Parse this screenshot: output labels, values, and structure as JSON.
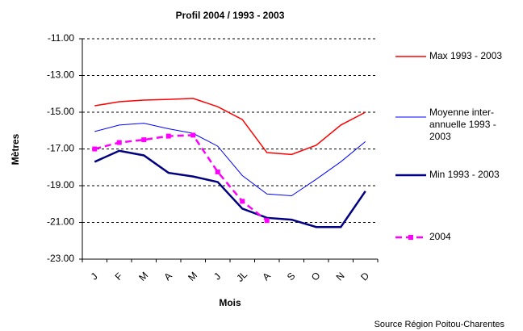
{
  "chart_data": {
    "type": "line",
    "title": "Profil 2004 / 1993 - 2003",
    "y_label": "Mètres",
    "x_label": "Mois",
    "source": "Source Région Poitou-Charentes",
    "categories": [
      "J",
      "F",
      "M",
      "A",
      "M",
      "J",
      "JL",
      "A",
      "S",
      "O",
      "N",
      "D"
    ],
    "ylim": [
      -23,
      -11
    ],
    "yticks": [
      {
        "value": -11,
        "label": "-11.00"
      },
      {
        "value": -13,
        "label": "-13.00"
      },
      {
        "value": -15,
        "label": "-15.00"
      },
      {
        "value": -17,
        "label": "-17.00"
      },
      {
        "value": -19,
        "label": "-19.00"
      },
      {
        "value": -21,
        "label": "-21.00"
      },
      {
        "value": -23,
        "label": "-23.00"
      }
    ],
    "grid": true,
    "legend": "right",
    "series": [
      {
        "name": "Max 1993 - 2003",
        "color": "#ff0000",
        "values": [
          -14.65,
          -14.43,
          -14.34,
          -14.3,
          -14.25,
          -14.7,
          -15.4,
          -17.2,
          -17.3,
          -16.8,
          -15.7,
          -15.0
        ]
      },
      {
        "name": "Moyenne inter-annuelle 1993 - 2003",
        "color": "#0000ff",
        "values": [
          -16.05,
          -15.7,
          -15.6,
          -15.9,
          -16.15,
          -16.85,
          -18.45,
          -19.45,
          -19.55,
          -18.65,
          -17.7,
          -16.6
        ]
      },
      {
        "name": "Min 1993 - 2003",
        "color": "#000080",
        "values": [
          -17.7,
          -17.1,
          -17.35,
          -18.3,
          -18.5,
          -18.8,
          -20.25,
          -20.75,
          -20.85,
          -21.25,
          -21.25,
          -19.3
        ]
      },
      {
        "name": "2004",
        "color": "#ff00ff",
        "dashed": true,
        "marker": "square",
        "values": [
          -17.0,
          -16.65,
          -16.5,
          -16.3,
          -16.25,
          -18.25,
          -19.85,
          -20.9,
          null,
          null,
          null,
          null
        ]
      }
    ]
  }
}
